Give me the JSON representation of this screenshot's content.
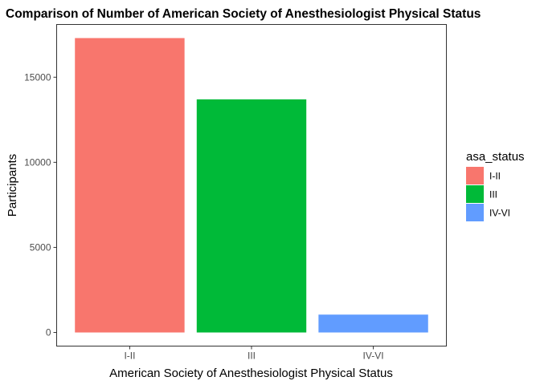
{
  "chart_data": {
    "type": "bar",
    "title": "Comparison of Number of American Society of Anesthesiologist Physical Status",
    "xlabel": "American Society of Anesthesiologist Physical Status",
    "ylabel": "Participants",
    "categories": [
      "I-II",
      "III",
      "IV-VI"
    ],
    "values": [
      17300,
      13700,
      1050
    ],
    "colors": [
      "#F8766D",
      "#00BA38",
      "#619CFF"
    ],
    "yticks": [
      0,
      5000,
      10000,
      15000
    ],
    "ylim": [
      -800,
      18100
    ],
    "grid": false,
    "legend": {
      "title": "asa_status",
      "placement": "right",
      "entries": [
        "I-II",
        "III",
        "IV-VI"
      ]
    }
  }
}
